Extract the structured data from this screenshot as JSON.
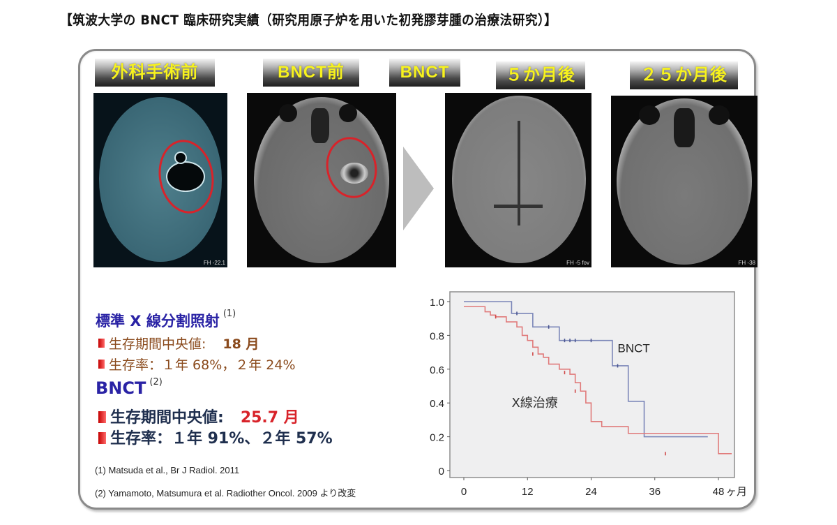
{
  "title": "【筑波大学の BNCT 臨床研究実績（研究用原子炉を用いた初発膠芽腫の治療法研究）】",
  "image_labels": [
    {
      "id": "pre-surgery",
      "label": "外科手術前"
    },
    {
      "id": "pre-bnct",
      "label": "BNCT前"
    },
    {
      "id": "bnct",
      "label": "BNCT"
    },
    {
      "id": "5-months",
      "label": "５か月後"
    },
    {
      "id": "25-months",
      "label": "２５か月後"
    }
  ],
  "mri_captions": [
    "FH -22.1",
    "",
    "FH -5 fov",
    "FH -38"
  ],
  "xray_section": {
    "heading": "標準 X 線分割照射",
    "ref": "(1)",
    "median_label": "生存期間中央値:",
    "median_value": "18 月",
    "survival_text": "生存率：１年 68%，２年 24%"
  },
  "bnct_section": {
    "heading": "BNCT",
    "ref": "(2)",
    "median_label": "生存期間中央値:",
    "median_value": "25.7 月",
    "survival_text": "生存率：１年 91%、２年 57%"
  },
  "references": [
    "(1) Matsuda et al., Br J Radiol. 2011",
    "(2) Yamamoto, Matsumura et al. Radiother Oncol. 2009 より改変"
  ],
  "colors": {
    "label_text": "#f7f21e",
    "heading_blue": "#2a23a5",
    "xray_brown": "#8a4a1c",
    "bnct_navy": "#1f2f4e",
    "highlight_red": "#d8232a",
    "bnct_line": "#7b86b8",
    "xray_line": "#e07a7a",
    "plot_bg": "#efeff0"
  },
  "chart_data": {
    "type": "line",
    "title": "",
    "xlabel": "ヶ月",
    "ylabel": "",
    "xlim": [
      0,
      48
    ],
    "ylim": [
      0,
      1.0
    ],
    "x_ticks": [
      "0",
      "12",
      "24",
      "36",
      "48"
    ],
    "y_ticks": [
      "0",
      "0.2",
      "0.4",
      "0.6",
      "0.8",
      "1.0"
    ],
    "x_unit_label": "ヶ月",
    "grid": false,
    "step": true,
    "series": [
      {
        "name": "BNCT",
        "label": "BNCT",
        "x": [
          0,
          9,
          13,
          18,
          28,
          31,
          34,
          46
        ],
        "y": [
          1.0,
          0.93,
          0.85,
          0.77,
          0.62,
          0.41,
          0.2,
          0.2
        ],
        "censored": [
          [
            10,
            0.93
          ],
          [
            16,
            0.85
          ],
          [
            19,
            0.77
          ],
          [
            20,
            0.77
          ],
          [
            21,
            0.77
          ],
          [
            24,
            0.77
          ],
          [
            29,
            0.62
          ]
        ]
      },
      {
        "name": "X線治療",
        "label": "X線治療",
        "x": [
          0,
          4,
          5,
          6,
          8,
          10,
          11,
          12,
          13,
          14,
          15,
          16,
          18,
          20,
          21,
          22,
          23,
          24,
          26,
          31,
          48
        ],
        "y": [
          0.97,
          0.94,
          0.92,
          0.91,
          0.88,
          0.85,
          0.8,
          0.77,
          0.73,
          0.69,
          0.67,
          0.63,
          0.6,
          0.57,
          0.52,
          0.47,
          0.4,
          0.29,
          0.26,
          0.22,
          0.1
        ],
        "censored": [
          [
            6,
            0.91
          ],
          [
            13,
            0.69
          ],
          [
            19,
            0.58
          ],
          [
            21,
            0.47
          ],
          [
            38,
            0.1
          ]
        ]
      }
    ],
    "annotations": [
      {
        "text": "BNCT",
        "x": 29,
        "y": 0.7
      },
      {
        "text": "X線治療",
        "x": 9,
        "y": 0.4
      }
    ]
  }
}
